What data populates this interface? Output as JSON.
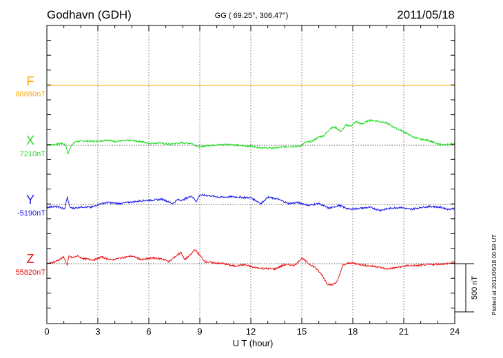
{
  "header": {
    "station": "Godhavn (GDH)",
    "coords": "GG ( 69.25°, 306.47°)",
    "date": "2011/05/18"
  },
  "plotted_note": "Plotted at 2011/06/18 00:59 UT",
  "chart_data": {
    "type": "line",
    "xlabel": "U T (hour)",
    "xlim": [
      0,
      24
    ],
    "xticks": [
      "0",
      "3",
      "6",
      "9",
      "12",
      "15",
      "18",
      "21",
      "24"
    ],
    "grid": true,
    "scale_bar": {
      "label": "500 nT",
      "value_nT": 500
    },
    "series": [
      {
        "name": "F",
        "baseline_label": "88880nT",
        "color": "#ffaa00",
        "x": [
          0,
          24
        ],
        "y": [
          0,
          0
        ]
      },
      {
        "name": "X",
        "baseline_label": "7210nT",
        "color": "#22dd22",
        "x": [
          0,
          0.5,
          0.9,
          1.1,
          1.25,
          1.4,
          1.7,
          2.2,
          3.0,
          3.5,
          4.0,
          4.8,
          5.5,
          6.0,
          6.6,
          7.2,
          7.6,
          8.0,
          8.5,
          9.0,
          9.5,
          10.0,
          10.8,
          11.5,
          12.0,
          12.6,
          13.2,
          13.8,
          14.4,
          14.9,
          15.2,
          15.6,
          16.0,
          16.3,
          16.7,
          17.0,
          17.3,
          17.6,
          17.9,
          18.2,
          18.5,
          19.0,
          19.5,
          20.0,
          20.5,
          21.0,
          21.5,
          22.0,
          22.5,
          23.0,
          23.5,
          24.0
        ],
        "y": [
          0,
          10,
          20,
          5,
          -90,
          -10,
          40,
          45,
          40,
          55,
          40,
          50,
          40,
          20,
          25,
          10,
          20,
          25,
          20,
          -20,
          0,
          5,
          10,
          -5,
          -10,
          -25,
          -30,
          -20,
          -10,
          -10,
          30,
          40,
          85,
          100,
          180,
          185,
          140,
          210,
          200,
          245,
          220,
          260,
          250,
          230,
          180,
          140,
          90,
          60,
          50,
          10,
          5,
          20
        ]
      },
      {
        "name": "Y",
        "baseline_label": "-5190nT",
        "color": "#1a1aee",
        "x": [
          0,
          0.4,
          0.8,
          1.05,
          1.2,
          1.35,
          1.6,
          2.0,
          2.6,
          3.2,
          3.6,
          4.2,
          5.0,
          5.6,
          6.2,
          6.8,
          7.4,
          7.7,
          8.0,
          8.5,
          8.8,
          9.0,
          9.6,
          10.2,
          10.8,
          11.4,
          12.0,
          12.6,
          13.0,
          13.6,
          14.2,
          14.8,
          15.4,
          16.0,
          16.6,
          17.2,
          17.8,
          18.4,
          19.0,
          19.6,
          20.2,
          20.8,
          21.4,
          22.0,
          22.6,
          23.2,
          23.6,
          24.0
        ],
        "y": [
          -30,
          -20,
          -30,
          -50,
          80,
          -30,
          -40,
          -25,
          -30,
          10,
          20,
          10,
          25,
          40,
          45,
          55,
          10,
          50,
          45,
          90,
          30,
          100,
          90,
          75,
          80,
          75,
          70,
          10,
          75,
          55,
          10,
          20,
          -10,
          10,
          -40,
          -10,
          -50,
          -40,
          -30,
          -60,
          -40,
          -30,
          -50,
          -30,
          -20,
          -30,
          -50,
          -40
        ]
      },
      {
        "name": "Z",
        "baseline_label": "55820nT",
        "color": "#ee1111",
        "x": [
          0,
          0.5,
          0.8,
          1.0,
          1.2,
          1.3,
          1.5,
          1.8,
          2.2,
          2.8,
          3.2,
          3.8,
          4.4,
          5.0,
          5.6,
          6.2,
          6.8,
          7.2,
          7.6,
          7.9,
          8.1,
          8.5,
          8.7,
          8.9,
          9.3,
          9.8,
          10.4,
          11.0,
          11.6,
          12.2,
          12.8,
          13.4,
          14.0,
          14.6,
          15.0,
          15.4,
          15.8,
          16.2,
          16.5,
          16.8,
          17.1,
          17.4,
          17.8,
          18.2,
          18.8,
          19.4,
          20.0,
          20.6,
          21.2,
          21.8,
          22.4,
          23.0,
          23.6,
          24.0
        ],
        "y": [
          0,
          20,
          50,
          70,
          -20,
          80,
          60,
          80,
          50,
          40,
          70,
          40,
          60,
          80,
          40,
          60,
          50,
          20,
          80,
          120,
          40,
          100,
          150,
          110,
          20,
          10,
          0,
          -25,
          -10,
          -40,
          -50,
          -55,
          -10,
          -15,
          60,
          0,
          -40,
          -120,
          -210,
          -220,
          -180,
          -20,
          10,
          0,
          -20,
          -30,
          -55,
          -40,
          -20,
          -20,
          -10,
          -5,
          0,
          20
        ]
      }
    ]
  }
}
